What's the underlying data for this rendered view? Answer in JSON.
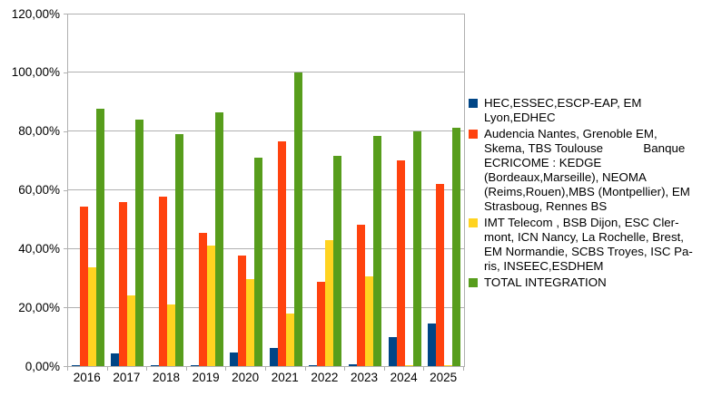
{
  "chart_data": {
    "type": "bar",
    "title": "",
    "xlabel": "",
    "ylabel": "",
    "categories": [
      "2016",
      "2017",
      "2018",
      "2019",
      "2020",
      "2021",
      "2022",
      "2023",
      "2024",
      "2025"
    ],
    "series": [
      {
        "name": "HEC,ESSEC,ESCP-EAP, EM Lyon,EDHEC",
        "color": "#004586",
        "values": [
          0.3,
          4.2,
          0.3,
          0.3,
          4.5,
          6.3,
          0.4,
          0.5,
          10.0,
          14.5
        ],
        "legend_lines": [
          "HEC,ESSEC,ESCP-EAP, EM",
          "Lyon,EDHEC"
        ]
      },
      {
        "name": "Audencia Nantes, Grenoble EM, Skema, TBS Toulouse Banque ECRICOME : KEDGE (Bordeaux,Marseille), NEOMA (Reims,Rouen),MBS (Montpellier), EM Strasboug, Rennes BS",
        "color": "#FF420E",
        "values": [
          54.3,
          55.8,
          57.8,
          45.5,
          37.7,
          76.5,
          28.7,
          48.0,
          70.0,
          62.0
        ],
        "legend_lines": [
          "Audencia Nantes, Grenoble EM,",
          "Skema, TBS Toulouse            Banque",
          "ECRICOME : KEDGE",
          "(Bordeaux,Marseille), NEOMA",
          "(Reims,Rouen),MBS (Montpellier), EM",
          "Strasboug, Rennes BS"
        ]
      },
      {
        "name": "IMT Telecom , BSB Dijon, ESC Clermont, ICN Nancy, La Rochelle, Brest, EM Normandie, SCBS Troyes, ISC Paris, INSEEC,ESDHEM",
        "color": "#FFD320",
        "values": [
          33.5,
          24.2,
          21.0,
          41.0,
          29.5,
          18.0,
          43.0,
          30.5,
          0.4,
          0.4
        ],
        "legend_lines": [
          "IMT Telecom , BSB Dijon, ESC Cler-",
          "mont, ICN Nancy, La Rochelle, Brest,",
          "EM Normandie, SCBS Troyes, ISC Pa-",
          "ris, INSEEC,ESDHEM"
        ]
      },
      {
        "name": "TOTAL INTEGRATION",
        "color": "#579D1C",
        "values": [
          87.5,
          84.0,
          79.0,
          86.5,
          71.0,
          100.0,
          71.5,
          78.5,
          80.0,
          81.0
        ],
        "legend_lines": [
          "TOTAL INTEGRATION"
        ]
      }
    ],
    "y_axis": {
      "min": 0,
      "max": 120,
      "step": 20,
      "tick_labels": [
        "0,00%",
        "20,00%",
        "40,00%",
        "60,00%",
        "80,00%",
        "100,00%",
        "120,00%"
      ]
    },
    "legend_position": "right",
    "grid": true
  },
  "colors": {
    "gridline": "#b0b0b0",
    "axis": "#b0b0b0",
    "background": "#ffffff",
    "text": "#000000"
  }
}
